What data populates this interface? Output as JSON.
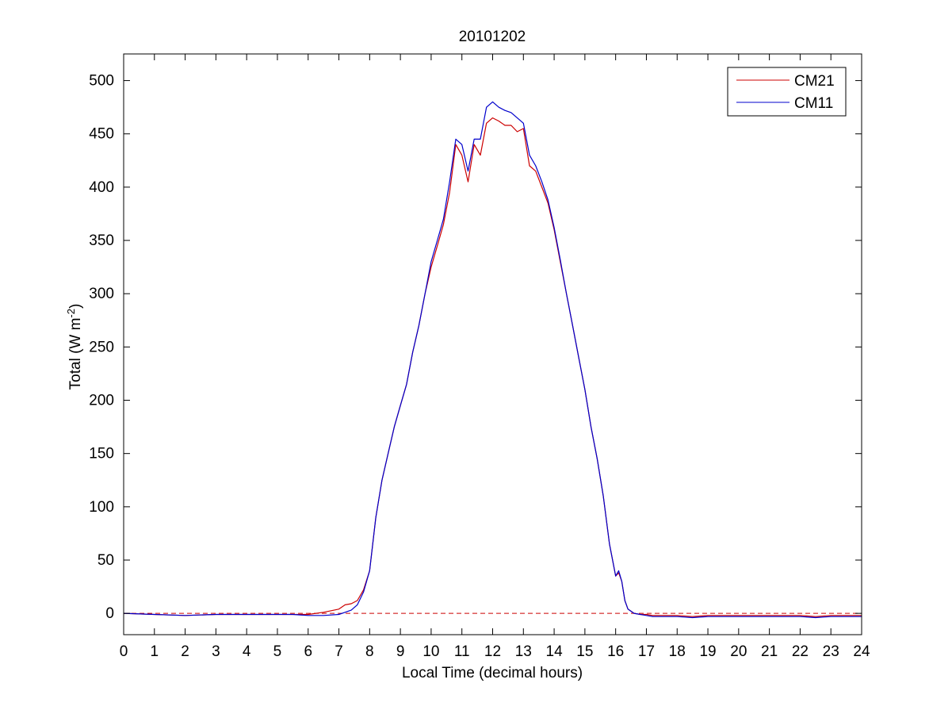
{
  "chart_data": {
    "type": "line",
    "title": "20101202",
    "xlabel": "Local Time (decimal hours)",
    "ylabel": {
      "base": "Total (W m",
      "sup": "-2",
      "tail": ")"
    },
    "xlim": [
      0,
      24
    ],
    "ylim": [
      -20,
      525
    ],
    "xticks": [
      0,
      1,
      2,
      3,
      4,
      5,
      6,
      7,
      8,
      9,
      10,
      11,
      12,
      13,
      14,
      15,
      16,
      17,
      18,
      19,
      20,
      21,
      22,
      23,
      24
    ],
    "yticks": [
      0,
      50,
      100,
      150,
      200,
      250,
      300,
      350,
      400,
      450,
      500
    ],
    "grid": false,
    "legend_position": "top-right",
    "reference_line": {
      "y": 0,
      "style": "dashed",
      "color": "#cc0000"
    },
    "series": [
      {
        "name": "CM21",
        "color": "#cc0000",
        "x": [
          0,
          1,
          2,
          3,
          4,
          5,
          5.5,
          6,
          6.5,
          7,
          7.2,
          7.4,
          7.6,
          7.8,
          8,
          8.2,
          8.4,
          8.6,
          8.8,
          9,
          9.2,
          9.4,
          9.6,
          9.8,
          10,
          10.2,
          10.4,
          10.6,
          10.8,
          11,
          11.2,
          11.4,
          11.6,
          11.8,
          12,
          12.2,
          12.4,
          12.6,
          12.8,
          13,
          13.2,
          13.4,
          13.6,
          13.8,
          14,
          14.2,
          14.4,
          14.6,
          14.8,
          15,
          15.2,
          15.4,
          15.6,
          15.8,
          16,
          16.1,
          16.2,
          16.3,
          16.4,
          16.6,
          16.8,
          17,
          17.2,
          17.5,
          18,
          18.5,
          19,
          20,
          21,
          22,
          22.5,
          23,
          24
        ],
        "y": [
          0,
          -1,
          -2,
          -1,
          -1,
          -1,
          -1,
          -1,
          1,
          4,
          8,
          9,
          12,
          22,
          40,
          90,
          125,
          150,
          175,
          195,
          215,
          245,
          270,
          300,
          325,
          345,
          365,
          395,
          440,
          430,
          405,
          440,
          430,
          460,
          465,
          462,
          458,
          458,
          452,
          455,
          420,
          415,
          400,
          385,
          360,
          330,
          300,
          270,
          240,
          210,
          175,
          145,
          110,
          65,
          35,
          38,
          30,
          12,
          4,
          0,
          -1,
          -1,
          -2,
          -2,
          -2,
          -3,
          -2,
          -2,
          -2,
          -2,
          -3,
          -2,
          -2
        ]
      },
      {
        "name": "CM11",
        "color": "#0000cc",
        "x": [
          0,
          1,
          2,
          3,
          4,
          5,
          5.5,
          6,
          6.5,
          7,
          7.2,
          7.4,
          7.6,
          7.8,
          8,
          8.2,
          8.4,
          8.6,
          8.8,
          9,
          9.2,
          9.4,
          9.6,
          9.8,
          10,
          10.2,
          10.4,
          10.6,
          10.8,
          11,
          11.2,
          11.4,
          11.6,
          11.8,
          12,
          12.2,
          12.4,
          12.6,
          12.8,
          13,
          13.2,
          13.4,
          13.6,
          13.8,
          14,
          14.2,
          14.4,
          14.6,
          14.8,
          15,
          15.2,
          15.4,
          15.6,
          15.8,
          16,
          16.1,
          16.2,
          16.3,
          16.4,
          16.6,
          16.8,
          17,
          17.2,
          17.5,
          18,
          18.5,
          19,
          20,
          21,
          22,
          22.5,
          23,
          24
        ],
        "y": [
          0,
          -1,
          -2,
          -1,
          -1,
          -1,
          -1,
          -2,
          -2,
          -1,
          1,
          3,
          8,
          20,
          40,
          90,
          125,
          150,
          175,
          195,
          215,
          245,
          270,
          300,
          330,
          350,
          370,
          405,
          445,
          440,
          415,
          445,
          445,
          475,
          480,
          475,
          472,
          470,
          465,
          460,
          430,
          420,
          405,
          388,
          362,
          332,
          300,
          270,
          240,
          210,
          175,
          145,
          110,
          65,
          35,
          40,
          30,
          12,
          4,
          0,
          -1,
          -2,
          -3,
          -3,
          -3,
          -4,
          -3,
          -3,
          -3,
          -3,
          -4,
          -3,
          -3
        ]
      }
    ]
  }
}
